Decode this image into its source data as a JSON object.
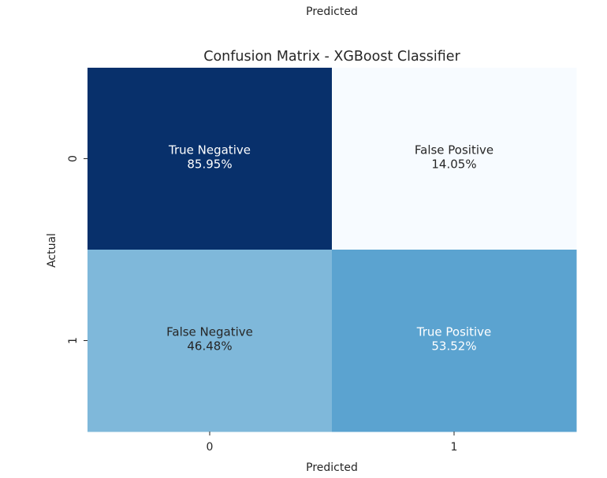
{
  "chart_data": {
    "type": "heatmap",
    "title": "Confusion Matrix - XGBoost Classifier",
    "top_label": "Predicted",
    "xlabel": "Predicted",
    "ylabel": "Actual",
    "x_categories": [
      "0",
      "1"
    ],
    "y_categories": [
      "0",
      "1"
    ],
    "values": [
      [
        85.95,
        14.05
      ],
      [
        46.48,
        53.52
      ]
    ],
    "cell_labels": [
      [
        "True Negative",
        "False Positive"
      ],
      [
        "False Negative",
        "True Positive"
      ]
    ],
    "value_suffix": "%",
    "colormap": "Blues",
    "colorbar": false,
    "grid": false,
    "cell_colors": [
      [
        "#08306b",
        "#f7fbff"
      ],
      [
        "#7fb8da",
        "#5ba3d0"
      ]
    ],
    "text_colors": [
      [
        "#ffffff",
        "#262626"
      ],
      [
        "#262626",
        "#ffffff"
      ]
    ]
  }
}
